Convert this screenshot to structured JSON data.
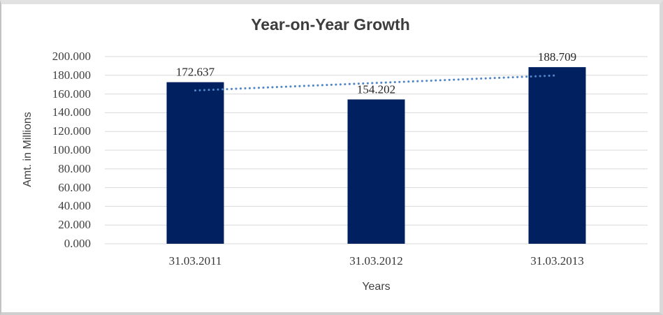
{
  "window": {
    "background": "#ffffff",
    "frame_border_color": "#d9d9d9"
  },
  "chart_data": {
    "type": "bar",
    "title": "Year-on-Year Growth",
    "xlabel": "Years",
    "ylabel": "Amt. in Millions",
    "categories": [
      "31.03.2011",
      "31.03.2012",
      "31.03.2013"
    ],
    "values": [
      172.637,
      154.202,
      188.709
    ],
    "data_labels": [
      "172.637",
      "154.202",
      "188.709"
    ],
    "ylim": [
      0,
      200
    ],
    "ytick_step": 20,
    "yticks": [
      "0.000",
      "20.000",
      "40.000",
      "60.000",
      "80.000",
      "100.000",
      "120.000",
      "140.000",
      "160.000",
      "180.000",
      "200.000"
    ],
    "grid": true,
    "legend": "none",
    "bar_color": "#002060",
    "gridline_color": "#d9d9d9",
    "axis_line_color": "#d9d9d9",
    "trendline": {
      "type": "linear",
      "style": "dotted",
      "color": "#4f86c8",
      "fitted_values": [
        163.813,
        171.849,
        179.885
      ]
    }
  }
}
